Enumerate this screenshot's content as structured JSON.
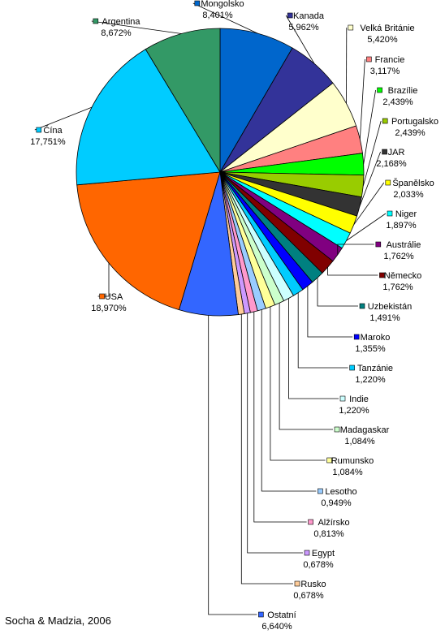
{
  "chart_data": {
    "type": "pie",
    "title": "",
    "legend": "none",
    "slices": [
      {
        "name": "Mongolsko",
        "value": 8.401,
        "label": "8,401%",
        "color": "#0066CC"
      },
      {
        "name": "Kanada",
        "value": 5.962,
        "label": "5,962%",
        "color": "#333399"
      },
      {
        "name": "Velká Británie",
        "value": 5.42,
        "label": "5,420%",
        "color": "#FFFFCC"
      },
      {
        "name": "Francie",
        "value": 3.117,
        "label": "3,117%",
        "color": "#FF8080"
      },
      {
        "name": "Brazílie",
        "value": 2.439,
        "label": "2,439%",
        "color": "#00FF00"
      },
      {
        "name": "Portugalsko",
        "value": 2.439,
        "label": "2,439%",
        "color": "#99CC00"
      },
      {
        "name": "JAR",
        "value": 2.168,
        "label": "2,168%",
        "color": "#333333"
      },
      {
        "name": "Španělsko",
        "value": 2.033,
        "label": "2,033%",
        "color": "#FFFF00"
      },
      {
        "name": "Niger",
        "value": 1.897,
        "label": "1,897%",
        "color": "#00FFFF"
      },
      {
        "name": "Austrálie",
        "value": 1.762,
        "label": "1,762%",
        "color": "#800080"
      },
      {
        "name": "Německo",
        "value": 1.762,
        "label": "1,762%",
        "color": "#800000"
      },
      {
        "name": "Uzbekistán",
        "value": 1.491,
        "label": "1,491%",
        "color": "#008080"
      },
      {
        "name": "Maroko",
        "value": 1.355,
        "label": "1,355%",
        "color": "#0000FF"
      },
      {
        "name": "Tanzánie",
        "value": 1.22,
        "label": "1,220%",
        "color": "#00CCFF"
      },
      {
        "name": "Indie",
        "value": 1.22,
        "label": "1,220%",
        "color": "#CCFFFF"
      },
      {
        "name": "Madagaskar",
        "value": 1.084,
        "label": "1,084%",
        "color": "#CCFFCC"
      },
      {
        "name": "Rumunsko",
        "value": 1.084,
        "label": "1,084%",
        "color": "#FFFF99"
      },
      {
        "name": "Lesotho",
        "value": 0.949,
        "label": "0,949%",
        "color": "#99CCFF"
      },
      {
        "name": "Alžírsko",
        "value": 0.813,
        "label": "0,813%",
        "color": "#FF99CC"
      },
      {
        "name": "Egypt",
        "value": 0.678,
        "label": "0,678%",
        "color": "#CC99FF"
      },
      {
        "name": "Rusko",
        "value": 0.678,
        "label": "0,678%",
        "color": "#FFCC99"
      },
      {
        "name": "Ostatní",
        "value": 6.64,
        "label": "6,640%",
        "color": "#3366FF"
      },
      {
        "name": "USA",
        "value": 18.97,
        "label": "18,970%",
        "color": "#FF6600"
      },
      {
        "name": "Čína",
        "value": 17.751,
        "label": "17,751%",
        "color": "#00CCFF"
      },
      {
        "name": "Argentina",
        "value": 8.672,
        "label": "8,672%",
        "color": "#339966"
      }
    ]
  },
  "credit": "Socha & Madzia, 2006"
}
